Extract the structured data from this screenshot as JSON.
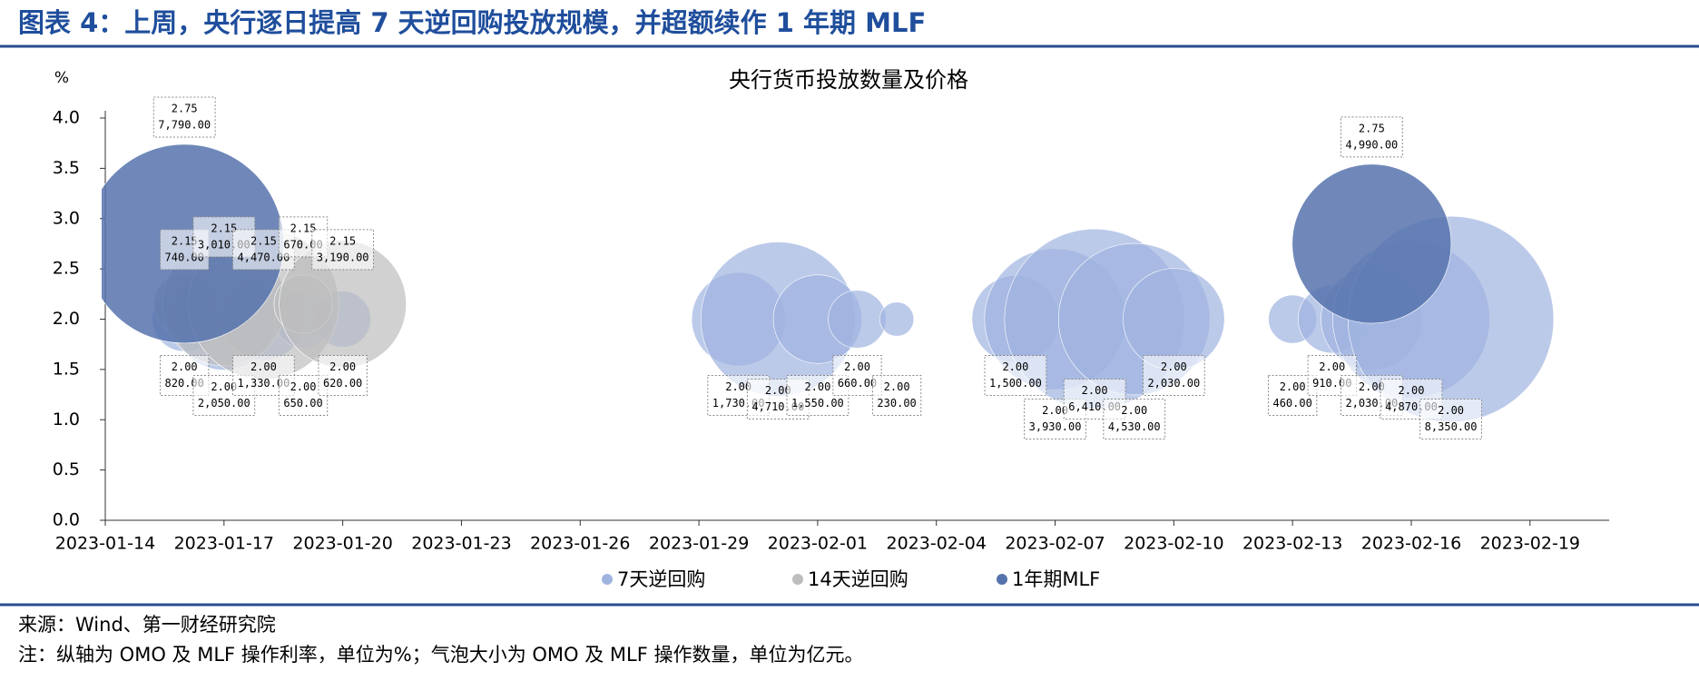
{
  "header": {
    "title": "图表 4：上周，央行逐日提高 7 天逆回购投放规模，并超额续作 1 年期 MLF"
  },
  "chart_data": {
    "type": "bubble",
    "title": "央行货币投放数量及价格",
    "y_label": "%",
    "xlim": [
      "2023-01-14",
      "2023-02-21"
    ],
    "xticks": [
      "2023-01-14",
      "2023-01-17",
      "2023-01-20",
      "2023-01-23",
      "2023-01-26",
      "2023-01-29",
      "2023-02-01",
      "2023-02-04",
      "2023-02-07",
      "2023-02-10",
      "2023-02-13",
      "2023-02-16",
      "2023-02-19"
    ],
    "ylim": [
      0,
      4
    ],
    "yticks": [
      {
        "value": 0,
        "label": "0.0"
      },
      0.5,
      {
        "value": 1,
        "label": "1.0"
      },
      1.5,
      {
        "value": 2,
        "label": "2.0"
      },
      2.5,
      {
        "value": 3,
        "label": "3.0"
      },
      3.5,
      {
        "value": 4,
        "label": "4.0"
      }
    ],
    "legend": "bottom",
    "series": [
      {
        "name": "7天逆回购",
        "color": "#9fb4df",
        "x": [
          "2023-01-16",
          "2023-01-17",
          "2023-01-18",
          "2023-01-19",
          "2023-01-20",
          "2023-01-30",
          "2023-01-31",
          "2023-02-01",
          "2023-02-02",
          "2023-02-03",
          "2023-02-06",
          "2023-02-07",
          "2023-02-08",
          "2023-02-09",
          "2023-02-10",
          "2023-02-13",
          "2023-02-14",
          "2023-02-15",
          "2023-02-16",
          "2023-02-17"
        ],
        "values": [
          2,
          2,
          2,
          2,
          2,
          2,
          2,
          2,
          2,
          2,
          2,
          2,
          2,
          2,
          2,
          2,
          2,
          2,
          2,
          2
        ],
        "value_labels": [
          "2.00",
          "2.00",
          "2.00",
          "2.00",
          "2.00",
          "2.00",
          "2.00",
          "2.00",
          "2.00",
          "2.00",
          "2.00",
          "2.00",
          "2.00",
          "2.00",
          "2.00",
          "2.00",
          "2.00",
          "2.00",
          "2.00",
          "2.00"
        ],
        "sizes": [
          820,
          2050,
          1330,
          650,
          620,
          1730,
          4710,
          1550,
          660,
          230,
          1500,
          3930,
          6410,
          4530,
          2030,
          460,
          910,
          2030,
          4870,
          8350
        ],
        "size_labels": [
          "820.00",
          "2,050.00",
          "1,330.00",
          "650.00",
          "620.00",
          "1,730.00",
          "4,710.00",
          "1,550.00",
          "660.00",
          "230.00",
          "1,500.00",
          "3,930.00",
          "6,410.00",
          "4,530.00",
          "2,030.00",
          "460.00",
          "910.00",
          "2,030.00",
          "4,870.00",
          "8,350.00"
        ]
      },
      {
        "name": "14天逆回购",
        "color": "#bdbdbd",
        "x": [
          "2023-01-16",
          "2023-01-17",
          "2023-01-18",
          "2023-01-19",
          "2023-01-20"
        ],
        "values": [
          2.15,
          2.15,
          2.15,
          2.15,
          2.15
        ],
        "value_labels": [
          "2.15",
          "2.15",
          "2.15",
          "2.15",
          "2.15"
        ],
        "sizes": [
          740,
          3010,
          4470,
          670,
          3190
        ],
        "size_labels": [
          "740.00",
          "3,010.00",
          "4,470.00",
          "670.00",
          "3,190.00"
        ]
      },
      {
        "name": "1年期MLF",
        "color": "#5673ad",
        "x": [
          "2023-01-16",
          "2023-02-15"
        ],
        "values": [
          2.75,
          2.75
        ],
        "value_labels": [
          "2.75",
          "2.75"
        ],
        "sizes": [
          7790,
          4990
        ],
        "size_labels": [
          "7,790.00",
          "4,990.00"
        ]
      }
    ]
  },
  "footer": {
    "source": "来源：Wind、第一财经研究院",
    "note": "注：纵轴为 OMO 及 MLF 操作利率，单位为%；气泡大小为 OMO 及 MLF 操作数量，单位为亿元。"
  }
}
